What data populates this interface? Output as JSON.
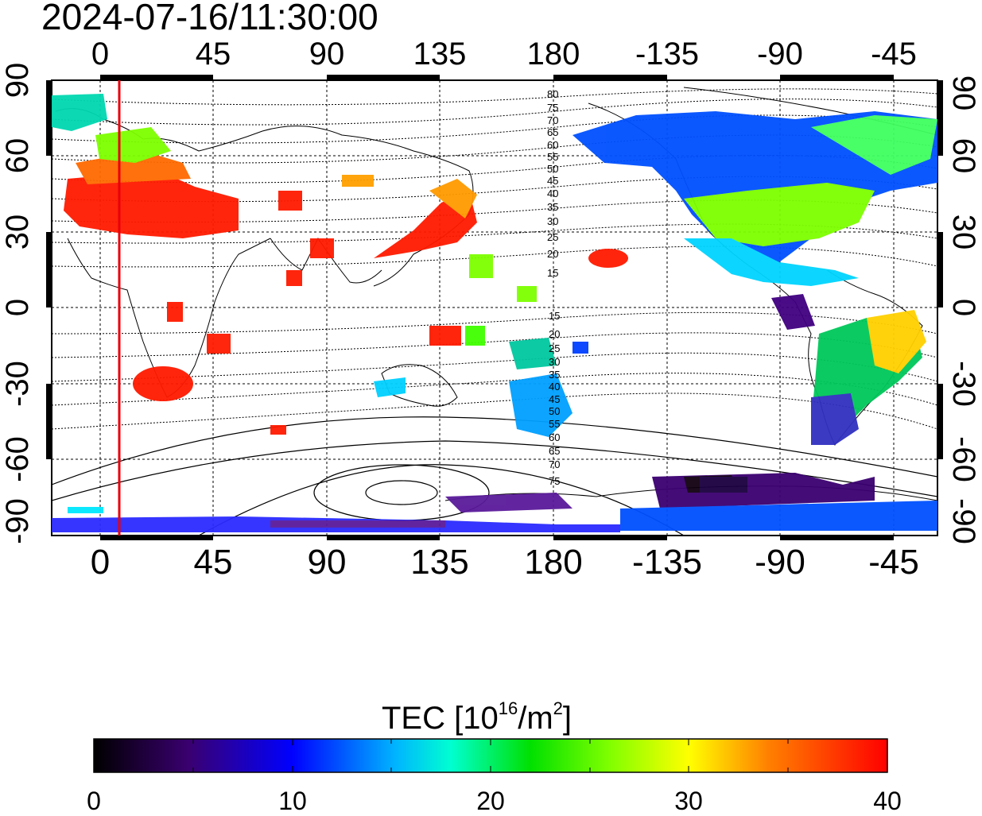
{
  "timestamp": "2024-07-16/11:30:00",
  "map": {
    "top_ticks": [
      "0",
      "45",
      "90",
      "135",
      "180",
      "-135",
      "-90",
      "-45"
    ],
    "bottom_ticks": [
      "0",
      "45",
      "90",
      "135",
      "180",
      "-135",
      "-90",
      "-45"
    ],
    "left_ticks": [
      "90",
      "60",
      "30",
      "0",
      "-30",
      "-60",
      "-90"
    ],
    "right_ticks": [
      "90",
      "60",
      "30",
      "0",
      "-30",
      "-60",
      "-90"
    ],
    "contour_labels_north": [
      "80",
      "75",
      "70",
      "65",
      "60",
      "55",
      "50",
      "45",
      "40",
      "35",
      "30",
      "25",
      "20",
      "15"
    ],
    "contour_labels_south": [
      "15",
      "20",
      "25",
      "30",
      "35",
      "40",
      "45",
      "50",
      "55",
      "60",
      "65",
      "70",
      "75"
    ],
    "terminator_color": "#e8000b"
  },
  "colorbar": {
    "title_prefix": "TEC  [10",
    "title_sup1": "16",
    "title_mid": "/m",
    "title_sup2": "2",
    "title_suffix": "]",
    "ticks": [
      "0",
      "10",
      "20",
      "30",
      "40"
    ],
    "range": [
      0,
      40
    ]
  }
}
